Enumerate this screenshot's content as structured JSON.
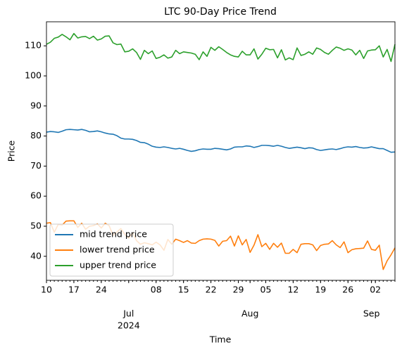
{
  "chart_data": {
    "type": "line",
    "title": "LTC 90-Day Price Trend",
    "xlabel": "Time",
    "ylabel": "Price",
    "x": [
      "2024-06-10",
      "2024-06-11",
      "2024-06-12",
      "2024-06-13",
      "2024-06-14",
      "2024-06-15",
      "2024-06-16",
      "2024-06-17",
      "2024-06-18",
      "2024-06-19",
      "2024-06-20",
      "2024-06-21",
      "2024-06-22",
      "2024-06-23",
      "2024-06-24",
      "2024-06-25",
      "2024-06-26",
      "2024-06-27",
      "2024-06-28",
      "2024-06-29",
      "2024-06-30",
      "2024-07-01",
      "2024-07-02",
      "2024-07-03",
      "2024-07-04",
      "2024-07-05",
      "2024-07-06",
      "2024-07-07",
      "2024-07-08",
      "2024-07-09",
      "2024-07-10",
      "2024-07-11",
      "2024-07-12",
      "2024-07-13",
      "2024-07-14",
      "2024-07-15",
      "2024-07-16",
      "2024-07-17",
      "2024-07-18",
      "2024-07-19",
      "2024-07-20",
      "2024-07-21",
      "2024-07-22",
      "2024-07-23",
      "2024-07-24",
      "2024-07-25",
      "2024-07-26",
      "2024-07-27",
      "2024-07-28",
      "2024-07-29",
      "2024-07-30",
      "2024-07-31",
      "2024-08-01",
      "2024-08-02",
      "2024-08-03",
      "2024-08-04",
      "2024-08-05",
      "2024-08-06",
      "2024-08-07",
      "2024-08-08",
      "2024-08-09",
      "2024-08-10",
      "2024-08-11",
      "2024-08-12",
      "2024-08-13",
      "2024-08-14",
      "2024-08-15",
      "2024-08-16",
      "2024-08-17",
      "2024-08-18",
      "2024-08-19",
      "2024-08-20",
      "2024-08-21",
      "2024-08-22",
      "2024-08-23",
      "2024-08-24",
      "2024-08-25",
      "2024-08-26",
      "2024-08-27",
      "2024-08-28",
      "2024-08-29",
      "2024-08-30",
      "2024-08-31",
      "2024-09-01",
      "2024-09-02",
      "2024-09-03",
      "2024-09-04",
      "2024-09-05",
      "2024-09-06",
      "2024-09-07"
    ],
    "series": [
      {
        "name": "mid trend price",
        "color": "#1f77b4",
        "values": [
          81.3,
          81.5,
          81.4,
          81.2,
          81.6,
          82.1,
          82.2,
          82.1,
          82,
          82.2,
          81.9,
          81.4,
          81.5,
          81.7,
          81.4,
          81,
          80.7,
          80.6,
          80.1,
          79.3,
          79,
          79,
          78.9,
          78.5,
          77.9,
          77.8,
          77.3,
          76.6,
          76.3,
          76.2,
          76.4,
          76.2,
          75.9,
          75.7,
          75.9,
          75.6,
          75.2,
          74.9,
          75.1,
          75.5,
          75.7,
          75.6,
          75.6,
          75.9,
          75.8,
          75.6,
          75.4,
          75.7,
          76.3,
          76.4,
          76.4,
          76.7,
          76.6,
          76.2,
          76.5,
          76.9,
          76.9,
          76.8,
          76.6,
          76.9,
          76.6,
          76.2,
          75.9,
          76.1,
          76.3,
          76.1,
          75.8,
          76.1,
          76,
          75.5,
          75.2,
          75.4,
          75.6,
          75.7,
          75.5,
          75.8,
          76.2,
          76.4,
          76.3,
          76.5,
          76.2,
          76.0,
          76.1,
          76.4,
          76.1,
          75.8,
          75.8,
          75.2,
          74.6,
          74.7
        ]
      },
      {
        "name": "lower trend price",
        "color": "#ff7f0e",
        "values": [
          51,
          51.2,
          48,
          50.6,
          50.4,
          51.7,
          51.8,
          51.8,
          49.6,
          51,
          49,
          50,
          50.2,
          50.8,
          49.4,
          51,
          50.2,
          47,
          48.1,
          49.2,
          47.3,
          46,
          47.8,
          45.2,
          44,
          44.5,
          44.2,
          43.8,
          44.7,
          43.8,
          42,
          45.6,
          44,
          45.7,
          45.2,
          44.6,
          45.2,
          44.4,
          44.3,
          45.2,
          45.7,
          45.8,
          45.7,
          45.3,
          43.4,
          45,
          45.2,
          46.7,
          43.4,
          46.8,
          43.8,
          45.6,
          41.3,
          43.7,
          47.2,
          43.2,
          44.3,
          42.3,
          44.3,
          43,
          44.4,
          41,
          41,
          42.3,
          41.2,
          44,
          44.2,
          44.2,
          43.8,
          41.9,
          43.6,
          44,
          44.1,
          45.2,
          43.8,
          42.9,
          44.8,
          41.2,
          42.2,
          42.5,
          42.6,
          42.7,
          45.1,
          42.3,
          42,
          43.7,
          35.6,
          38.5,
          40.5,
          42.8
        ]
      },
      {
        "name": "upper trend price",
        "color": "#2ca02c",
        "values": [
          110.5,
          111.2,
          112.5,
          112.9,
          113.8,
          113,
          112,
          114.1,
          112.6,
          113,
          113.1,
          112.4,
          113.2,
          111.9,
          112.3,
          113.2,
          113.3,
          111,
          110.4,
          110.6,
          108,
          108.2,
          109,
          107.8,
          105.5,
          108.5,
          107.4,
          108.3,
          105.8,
          106.2,
          107,
          105.9,
          106.3,
          108.5,
          107.4,
          108,
          107.8,
          107.6,
          107.2,
          105.4,
          108,
          106.5,
          109.5,
          108.5,
          109.7,
          108.8,
          107.8,
          107,
          106.5,
          106.3,
          108.2,
          107,
          107,
          109,
          105.6,
          107.2,
          109.2,
          108.7,
          108.8,
          106,
          108.7,
          105.3,
          106,
          105.4,
          109.3,
          106.8,
          107.2,
          108,
          107.2,
          109.3,
          108.8,
          107.8,
          107.2,
          108.5,
          109.6,
          109.2,
          108.5,
          109,
          108.6,
          107,
          108.5,
          105.8,
          108.3,
          108.6,
          108.7,
          110,
          106.3,
          108.8,
          104.8,
          110.5
        ]
      }
    ],
    "xlim": [
      "2024-06-10",
      "2024-09-07"
    ],
    "xticks": [
      {
        "value": "2024-06-10",
        "label": "10"
      },
      {
        "value": "2024-06-17",
        "label": "17"
      },
      {
        "value": "2024-06-24",
        "label": "24"
      },
      {
        "value": "2024-07-08",
        "label": "08"
      },
      {
        "value": "2024-07-15",
        "label": "15"
      },
      {
        "value": "2024-07-22",
        "label": "22"
      },
      {
        "value": "2024-07-29",
        "label": "29"
      },
      {
        "value": "2024-08-05",
        "label": "05"
      },
      {
        "value": "2024-08-12",
        "label": "12"
      },
      {
        "value": "2024-08-19",
        "label": "19"
      },
      {
        "value": "2024-08-26",
        "label": "26"
      },
      {
        "value": "2024-09-02",
        "label": "02"
      }
    ],
    "xticks_month": [
      {
        "value": "2024-07-01",
        "label": "Jul"
      },
      {
        "value": "2024-08-01",
        "label": "Aug"
      },
      {
        "value": "2024-09-01",
        "label": "Sep"
      }
    ],
    "x_year": "2024",
    "ylim": [
      32,
      118
    ],
    "yticks": [
      40,
      50,
      60,
      70,
      80,
      90,
      100,
      110
    ],
    "grid": false,
    "legend": "lower left"
  }
}
